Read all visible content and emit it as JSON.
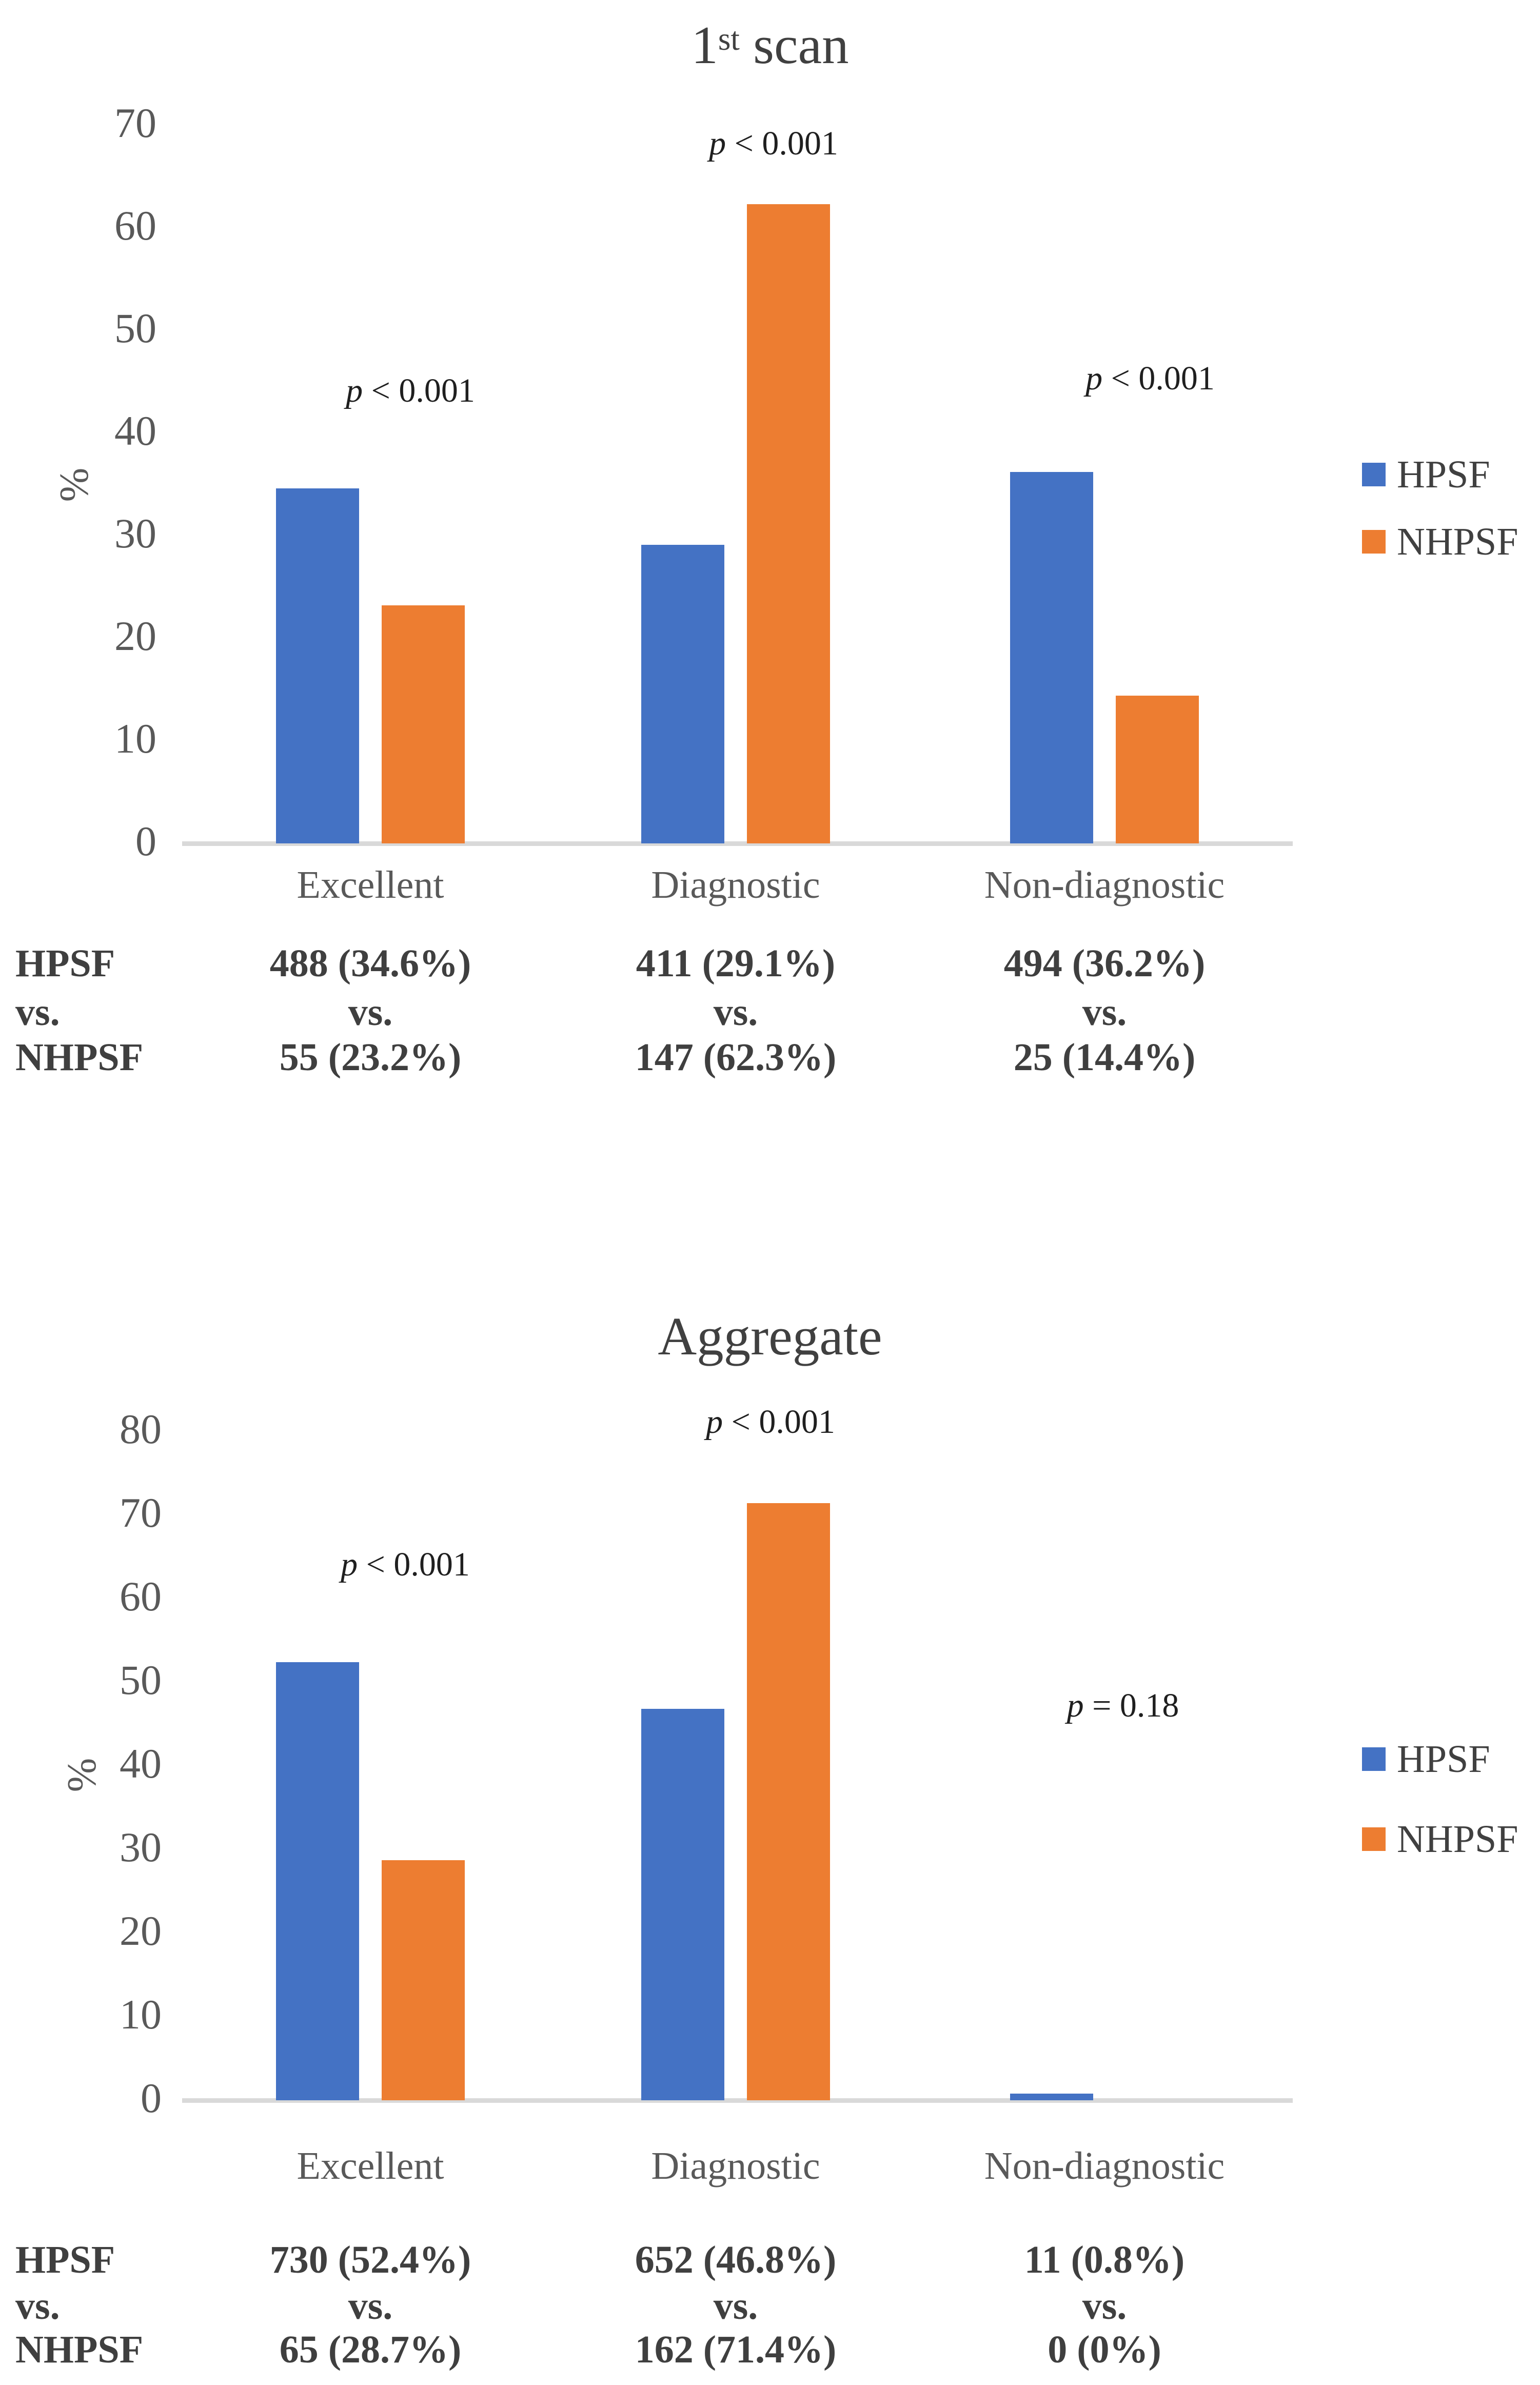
{
  "page": {
    "background": "#FFFFFF"
  },
  "colors": {
    "hpsf": "#4472C4",
    "nhpsf": "#ED7D31",
    "axis_line": "#D9D9D9",
    "tick_text": "#595959",
    "category_text": "#595959",
    "title_text": "#404040",
    "p_text": "#1F1F1F",
    "legend_text": "#404040",
    "table_text": "#3F3F3F"
  },
  "charts": [
    {
      "id": "first-scan",
      "title": "1st scan",
      "title_parts": [
        {
          "t": "1"
        },
        {
          "t": "st",
          "sup": true
        },
        {
          "t": " scan"
        }
      ],
      "y_axis": {
        "label": "%",
        "min": 0,
        "max": 70,
        "step": 10
      },
      "categories": [
        "Excellent",
        "Diagnostic",
        "Non-diagnostic"
      ],
      "series": [
        {
          "name": "HPSF",
          "color_key": "hpsf",
          "values": [
            34.6,
            29.1,
            36.2
          ]
        },
        {
          "name": "NHPSF",
          "color_key": "nhpsf",
          "values": [
            23.2,
            62.3,
            14.4
          ]
        }
      ],
      "p_labels": [
        "p < 0.001",
        "p < 0.001",
        "p < 0.001"
      ],
      "legend": [
        "HPSF",
        "NHPSF"
      ],
      "table": {
        "rows": [
          {
            "label": "HPSF",
            "cells": [
              "488 (34.6%)",
              "411 (29.1%)",
              "494 (36.2%)"
            ]
          },
          {
            "label": "vs.",
            "cells": [
              "vs.",
              "vs.",
              "vs."
            ]
          },
          {
            "label": "NHPSF",
            "cells": [
              "55 (23.2%)",
              "147 (62.3%)",
              "25 (14.4%)"
            ]
          }
        ]
      }
    },
    {
      "id": "aggregate",
      "title": "Aggregate",
      "title_parts": [
        {
          "t": "Aggregate"
        }
      ],
      "y_axis": {
        "label": "%",
        "min": 0,
        "max": 80,
        "step": 10
      },
      "categories": [
        "Excellent",
        "Diagnostic",
        "Non-diagnostic"
      ],
      "series": [
        {
          "name": "HPSF",
          "color_key": "hpsf",
          "values": [
            52.4,
            46.8,
            0.8
          ]
        },
        {
          "name": "NHPSF",
          "color_key": "nhpsf",
          "values": [
            28.7,
            71.4,
            0
          ]
        }
      ],
      "p_labels": [
        "p < 0.001",
        "p < 0.001",
        "p = 0.18"
      ],
      "legend": [
        "HPSF",
        "NHPSF"
      ],
      "table": {
        "rows": [
          {
            "label": "HPSF",
            "cells": [
              "730 (52.4%)",
              "652 (46.8%)",
              "11 (0.8%)"
            ]
          },
          {
            "label": "vs.",
            "cells": [
              "vs.",
              "vs.",
              "vs."
            ]
          },
          {
            "label": "NHPSF",
            "cells": [
              "65 (28.7%)",
              "162 (71.4%)",
              "0 (0%)"
            ]
          }
        ]
      }
    }
  ],
  "chart_data": [
    {
      "type": "bar",
      "title": "1st scan",
      "categories": [
        "Excellent",
        "Diagnostic",
        "Non-diagnostic"
      ],
      "series": [
        {
          "name": "HPSF",
          "values": [
            34.6,
            29.1,
            36.2
          ]
        },
        {
          "name": "NHPSF",
          "values": [
            23.2,
            62.3,
            14.4
          ]
        }
      ],
      "xlabel": "",
      "ylabel": "%",
      "ylim": [
        0,
        70
      ],
      "ytick_step": 10,
      "grid": false,
      "legend_position": "right",
      "annotations": [
        "p < 0.001",
        "p < 0.001",
        "p < 0.001"
      ],
      "counts": {
        "HPSF": [
          "488 (34.6%)",
          "411 (29.1%)",
          "494 (36.2%)"
        ],
        "NHPSF": [
          "55 (23.2%)",
          "147 (62.3%)",
          "25 (14.4%)"
        ]
      }
    },
    {
      "type": "bar",
      "title": "Aggregate",
      "categories": [
        "Excellent",
        "Diagnostic",
        "Non-diagnostic"
      ],
      "series": [
        {
          "name": "HPSF",
          "values": [
            52.4,
            46.8,
            0.8
          ]
        },
        {
          "name": "NHPSF",
          "values": [
            28.7,
            71.4,
            0
          ]
        }
      ],
      "xlabel": "",
      "ylabel": "%",
      "ylim": [
        0,
        80
      ],
      "ytick_step": 10,
      "grid": false,
      "legend_position": "right",
      "annotations": [
        "p < 0.001",
        "p < 0.001",
        "p = 0.18"
      ],
      "counts": {
        "HPSF": [
          "730 (52.4%)",
          "652 (46.8%)",
          "11 (0.8%)"
        ],
        "NHPSF": [
          "65 (28.7%)",
          "162 (71.4%)",
          "0 (0%)"
        ]
      }
    }
  ]
}
